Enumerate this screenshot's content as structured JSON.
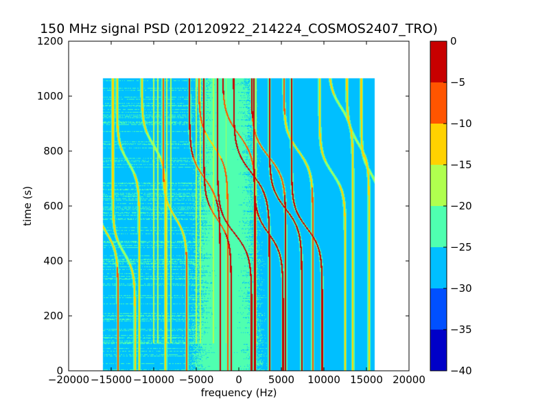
{
  "chart_data": {
    "type": "heatmap",
    "title": "150 MHz signal PSD (20120922_214224_COSMOS2407_TRO)",
    "xlabel": "frequency (Hz)",
    "ylabel": "time (s)",
    "xlim": [
      -20000,
      20000
    ],
    "ylim": [
      0,
      1200
    ],
    "xticks": [
      -20000,
      -15000,
      -10000,
      -5000,
      0,
      5000,
      10000,
      15000,
      20000
    ],
    "xtick_labels": [
      "−20000",
      "−15000",
      "−10000",
      "−5000",
      "0",
      "5000",
      "10000",
      "15000",
      "20000"
    ],
    "yticks": [
      0,
      200,
      400,
      600,
      800,
      1000,
      1200
    ],
    "ytick_labels": [
      "0",
      "200",
      "400",
      "600",
      "800",
      "1000",
      "1200"
    ],
    "data_extent": {
      "x": [
        -16000,
        16000
      ],
      "y": [
        0,
        1065
      ]
    },
    "background_level_range": [
      -30,
      -25
    ],
    "colorbar": {
      "levels": [
        -40,
        -35,
        -30,
        -25,
        -20,
        -15,
        -10,
        -5,
        0
      ],
      "tick_labels": [
        "−40",
        "−35",
        "−30",
        "−25",
        "−20",
        "−15",
        "−10",
        "−5",
        "0"
      ],
      "colors": [
        "#0000c8",
        "#0050ff",
        "#00bfff",
        "#4fffb0",
        "#b0ff4f",
        "#ffd200",
        "#ff5500",
        "#c80000"
      ]
    },
    "vertical_lines_hz": [
      -10000,
      -9500,
      -8500,
      -8000,
      -5000,
      -4500,
      -3000,
      -1500,
      2000
    ],
    "doppler_traces": [
      {
        "fc": -15500,
        "tc": 500,
        "amp": 1300,
        "k": 70,
        "peak": -15
      },
      {
        "fc": -13500,
        "tc": 430,
        "amp": 1300,
        "k": 70,
        "peak": -17
      },
      {
        "fc": -13000,
        "tc": 760,
        "amp": 1300,
        "k": 70,
        "peak": -17
      },
      {
        "fc": -10000,
        "tc": 820,
        "amp": 1400,
        "k": 72,
        "peak": -17
      },
      {
        "fc": -7500,
        "tc": 560,
        "amp": 1400,
        "k": 72,
        "peak": -15
      },
      {
        "fc": -4000,
        "tc": 700,
        "amp": 1800,
        "k": 80,
        "peak": -8
      },
      {
        "fc": -3000,
        "tc": 820,
        "amp": 1700,
        "k": 78,
        "peak": -12
      },
      {
        "fc": -2500,
        "tc": 550,
        "amp": 1600,
        "k": 75,
        "peak": -7
      },
      {
        "fc": -500,
        "tc": 500,
        "amp": 2000,
        "k": 80,
        "peak": -5
      },
      {
        "fc": 0,
        "tc": 860,
        "amp": 1900,
        "k": 82,
        "peak": -10
      },
      {
        "fc": 1500,
        "tc": 720,
        "amp": 2100,
        "k": 85,
        "peak": -6
      },
      {
        "fc": 3500,
        "tc": 780,
        "amp": 2000,
        "k": 80,
        "peak": -10
      },
      {
        "fc": 3500,
        "tc": 500,
        "amp": 1700,
        "k": 75,
        "peak": -5
      },
      {
        "fc": 5500,
        "tc": 590,
        "amp": 1900,
        "k": 78,
        "peak": -6
      },
      {
        "fc": 7000,
        "tc": 800,
        "amp": 1700,
        "k": 75,
        "peak": -15
      },
      {
        "fc": 8000,
        "tc": 520,
        "amp": 1800,
        "k": 75,
        "peak": -6
      },
      {
        "fc": 11000,
        "tc": 720,
        "amp": 1500,
        "k": 70,
        "peak": -17
      },
      {
        "fc": 12000,
        "tc": 960,
        "amp": 1400,
        "k": 70,
        "peak": -17
      },
      {
        "fc": 14000,
        "tc": 830,
        "amp": 1300,
        "k": 68,
        "peak": -17
      },
      {
        "fc": 15500,
        "tc": 720,
        "amp": 1100,
        "k": 60,
        "peak": -18
      }
    ]
  }
}
